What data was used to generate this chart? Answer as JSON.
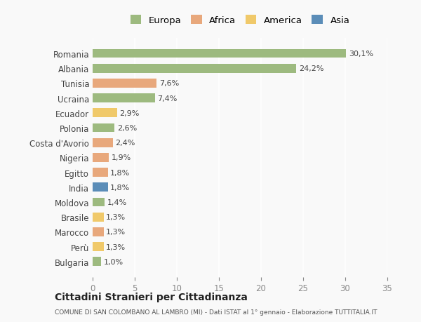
{
  "countries": [
    "Romania",
    "Albania",
    "Tunisia",
    "Ucraina",
    "Ecuador",
    "Polonia",
    "Costa d'Avorio",
    "Nigeria",
    "Egitto",
    "India",
    "Moldova",
    "Brasile",
    "Marocco",
    "Perù",
    "Bulgaria"
  ],
  "values": [
    30.1,
    24.2,
    7.6,
    7.4,
    2.9,
    2.6,
    2.4,
    1.9,
    1.8,
    1.8,
    1.4,
    1.3,
    1.3,
    1.3,
    1.0
  ],
  "labels": [
    "30,1%",
    "24,2%",
    "7,6%",
    "7,4%",
    "2,9%",
    "2,6%",
    "2,4%",
    "1,9%",
    "1,8%",
    "1,8%",
    "1,4%",
    "1,3%",
    "1,3%",
    "1,3%",
    "1,0%"
  ],
  "colors": [
    "#9dba7f",
    "#9dba7f",
    "#e8a87c",
    "#9dba7f",
    "#f0c96a",
    "#9dba7f",
    "#e8a87c",
    "#e8a87c",
    "#e8a87c",
    "#5b8db8",
    "#9dba7f",
    "#f0c96a",
    "#e8a87c",
    "#f0c96a",
    "#9dba7f"
  ],
  "legend_labels": [
    "Europa",
    "Africa",
    "America",
    "Asia"
  ],
  "legend_colors": [
    "#9dba7f",
    "#e8a87c",
    "#f0c96a",
    "#5b8db8"
  ],
  "title": "Cittadini Stranieri per Cittadinanza",
  "subtitle": "COMUNE DI SAN COLOMBANO AL LAMBRO (MI) - Dati ISTAT al 1° gennaio - Elaborazione TUTTITALIA.IT",
  "xlim": [
    0,
    35
  ],
  "xticks": [
    0,
    5,
    10,
    15,
    20,
    25,
    30,
    35
  ],
  "background_color": "#f9f9f9",
  "grid_color": "#ffffff"
}
